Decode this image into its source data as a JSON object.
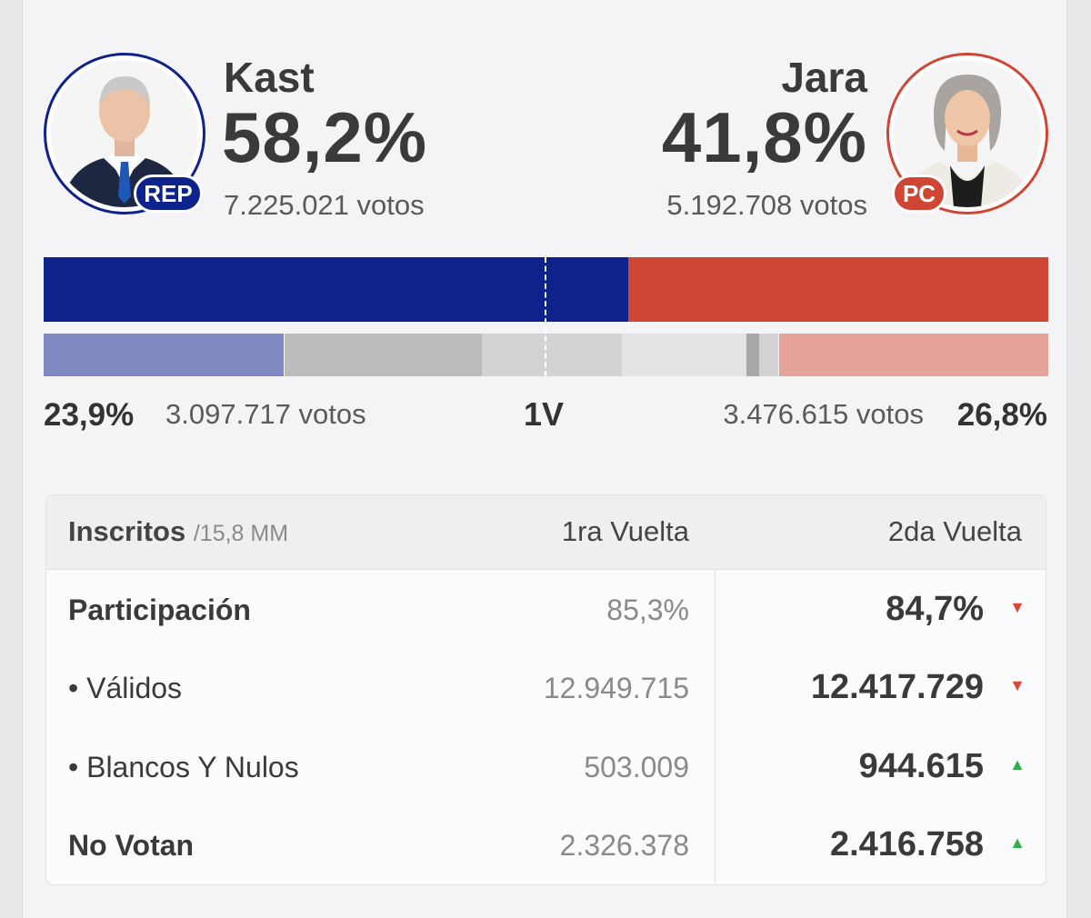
{
  "colors": {
    "rep_blue": "#0e228c",
    "pc_red": "#cf4635",
    "rep_light": "#8089c2",
    "pc_light": "#e6a39a",
    "gray1": "#bcbcbc",
    "gray2": "#d3d3d3",
    "gray3": "#e3e3e3",
    "gray_dark": "#a8a8a8",
    "up_green": "#2fae4a",
    "down_red": "#d84a35"
  },
  "candidates": {
    "left": {
      "name": "Kast",
      "pct": "58,2%",
      "votes": "7.225.021 votos",
      "party": "REP",
      "share": 0.582
    },
    "right": {
      "name": "Jara",
      "pct": "41,8%",
      "votes": "5.192.708 votos",
      "party": "PC",
      "share": 0.418
    }
  },
  "first_round": {
    "label": "1V",
    "left": {
      "pct": "23,9%",
      "votes": "3.097.717 votos",
      "share": 0.239
    },
    "right": {
      "pct": "26,8%",
      "votes": "3.476.615 votos",
      "share": 0.268
    }
  },
  "table": {
    "header": {
      "label": "Inscritos",
      "sub": "/15,8 MM",
      "col1": "1ra Vuelta",
      "col2": "2da Vuelta"
    },
    "rows": [
      {
        "label": "Participación",
        "v1": "85,3%",
        "v2": "84,7%",
        "trend": "down",
        "bold": true
      },
      {
        "label": "• Válidos",
        "v1": "12.949.715",
        "v2": "12.417.729",
        "trend": "down",
        "bold": false
      },
      {
        "label": "• Blancos Y Nulos",
        "v1": "503.009",
        "v2": "944.615",
        "trend": "up",
        "bold": false
      },
      {
        "label": "No Votan",
        "v1": "2.326.378",
        "v2": "2.416.758",
        "trend": "up",
        "bold": true
      }
    ]
  },
  "icons": {
    "down": "▼",
    "up": "▲"
  }
}
